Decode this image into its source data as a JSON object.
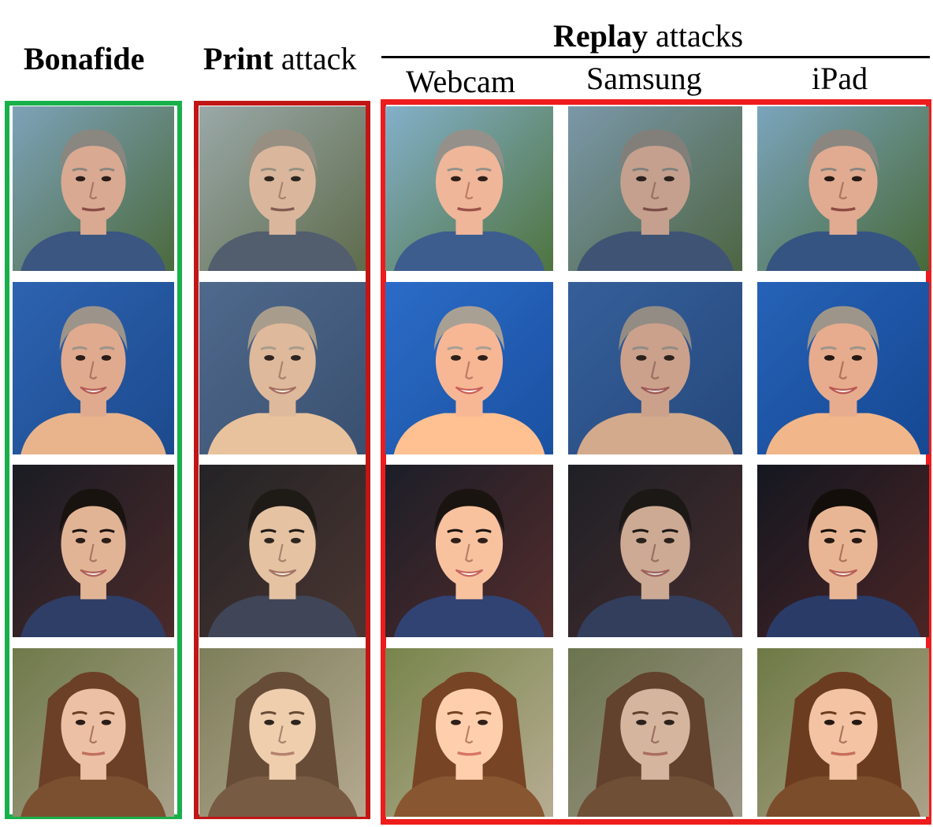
{
  "headers": {
    "bonafide": "Bonafide",
    "print_bold": "Print",
    "print_rest": " attack",
    "replay_bold": "Replay",
    "replay_rest": " attacks",
    "webcam": "Webcam",
    "samsung": "Samsung",
    "ipad": "iPad"
  },
  "colors": {
    "bonafide_frame": "#18b04a",
    "print_frame": "#c11616",
    "replay_frame": "#ee1c1c"
  },
  "subjects": [
    {
      "description": "older man, short gray hair, blue shirt, outdoor blurred background"
    },
    {
      "description": "older woman, short gray hair, smiling, blue background"
    },
    {
      "description": "young man, black hair, smiling, dark background"
    },
    {
      "description": "young woman, long brown hair, outdoor foliage background"
    }
  ]
}
